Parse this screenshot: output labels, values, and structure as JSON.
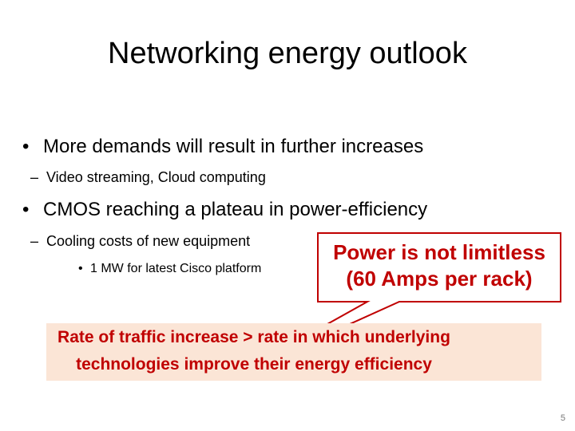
{
  "slide": {
    "title": "Networking energy outlook",
    "bullets": [
      {
        "marker": "•",
        "text": "More demands will result in further increases"
      },
      {
        "marker": "–",
        "text": "Video streaming, Cloud computing"
      },
      {
        "marker": "•",
        "text": "CMOS reaching a plateau in power-efficiency"
      },
      {
        "marker": "–",
        "text": "Cooling costs of new equipment"
      },
      {
        "marker": "•",
        "text": "1 MW for latest Cisco platform"
      }
    ],
    "callout": {
      "line1": "Power is not limitless",
      "line2": "(60 Amps per  rack)"
    },
    "highlight": {
      "line1": "Rate of traffic increase  > rate in which underlying",
      "line2": "technologies improve their energy efficiency"
    },
    "page_number": "5"
  },
  "colors": {
    "callout_fill": "#ffffff",
    "callout_border": "#c00000",
    "accent_text": "#c00000",
    "highlight_fill": "#fbe5d6"
  }
}
